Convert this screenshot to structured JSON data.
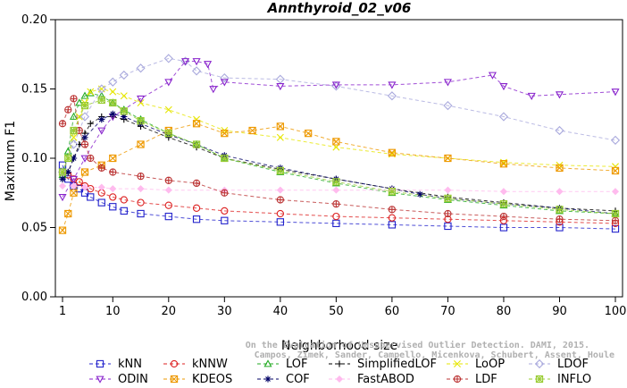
{
  "chart_data": {
    "type": "line",
    "title": "Annthyroid_02_v06",
    "xlabel": "Neighborhood size",
    "ylabel": "Maximum F1",
    "xlim": [
      1,
      100
    ],
    "ylim": [
      0,
      0.2
    ],
    "xticks": [
      "1",
      "10",
      "20",
      "30",
      "40",
      "50",
      "60",
      "70",
      "80",
      "90",
      "100"
    ],
    "yticks": [
      "0.00",
      "0.05",
      "0.10",
      "0.15",
      "0.20"
    ],
    "grid": false,
    "legend_position": "bottom",
    "credit_lines": [
      "Campos, Zimek, Sander, Campello, Micenkova, Schubert, Assent, Houle",
      "On the Evaluation of Unsupervised Outlier Detection. DAMI, 2015."
    ],
    "series": [
      {
        "name": "kNN",
        "color": "#2222cc",
        "marker": "square",
        "points": [
          [
            1,
            0.095
          ],
          [
            2,
            0.085
          ],
          [
            3,
            0.08
          ],
          [
            4,
            0.078
          ],
          [
            5,
            0.075
          ],
          [
            6,
            0.072
          ],
          [
            8,
            0.068
          ],
          [
            10,
            0.065
          ],
          [
            12,
            0.062
          ],
          [
            15,
            0.06
          ],
          [
            20,
            0.058
          ],
          [
            25,
            0.056
          ],
          [
            30,
            0.055
          ],
          [
            40,
            0.054
          ],
          [
            50,
            0.053
          ],
          [
            60,
            0.052
          ],
          [
            70,
            0.051
          ],
          [
            80,
            0.05
          ],
          [
            90,
            0.05
          ],
          [
            100,
            0.049
          ]
        ]
      },
      {
        "name": "kNNW",
        "color": "#dd2222",
        "marker": "circle",
        "points": [
          [
            1,
            0.09
          ],
          [
            2,
            0.088
          ],
          [
            3,
            0.085
          ],
          [
            4,
            0.083
          ],
          [
            5,
            0.08
          ],
          [
            6,
            0.078
          ],
          [
            8,
            0.075
          ],
          [
            10,
            0.072
          ],
          [
            12,
            0.07
          ],
          [
            15,
            0.068
          ],
          [
            20,
            0.066
          ],
          [
            25,
            0.064
          ],
          [
            30,
            0.062
          ],
          [
            40,
            0.06
          ],
          [
            50,
            0.058
          ],
          [
            60,
            0.057
          ],
          [
            70,
            0.056
          ],
          [
            80,
            0.055
          ],
          [
            90,
            0.054
          ],
          [
            100,
            0.053
          ]
        ]
      },
      {
        "name": "LOF",
        "color": "#22aa22",
        "marker": "triangle",
        "points": [
          [
            1,
            0.088
          ],
          [
            2,
            0.105
          ],
          [
            3,
            0.13
          ],
          [
            4,
            0.14
          ],
          [
            5,
            0.145
          ],
          [
            6,
            0.147
          ],
          [
            8,
            0.145
          ],
          [
            10,
            0.14
          ],
          [
            12,
            0.135
          ],
          [
            15,
            0.128
          ],
          [
            20,
            0.118
          ],
          [
            25,
            0.11
          ],
          [
            30,
            0.1
          ],
          [
            40,
            0.09
          ],
          [
            50,
            0.082
          ],
          [
            60,
            0.075
          ],
          [
            70,
            0.07
          ],
          [
            80,
            0.066
          ],
          [
            90,
            0.062
          ],
          [
            100,
            0.06
          ]
        ]
      },
      {
        "name": "SimplifiedLOF",
        "color": "#000000",
        "marker": "plus",
        "points": [
          [
            1,
            0.085
          ],
          [
            2,
            0.09
          ],
          [
            3,
            0.1
          ],
          [
            4,
            0.11
          ],
          [
            5,
            0.118
          ],
          [
            6,
            0.125
          ],
          [
            8,
            0.13
          ],
          [
            10,
            0.13
          ],
          [
            12,
            0.128
          ],
          [
            15,
            0.123
          ],
          [
            20,
            0.115
          ],
          [
            25,
            0.108
          ],
          [
            30,
            0.1
          ],
          [
            40,
            0.092
          ],
          [
            50,
            0.085
          ],
          [
            60,
            0.078
          ],
          [
            70,
            0.072
          ],
          [
            80,
            0.068
          ],
          [
            90,
            0.064
          ],
          [
            100,
            0.062
          ]
        ]
      },
      {
        "name": "LoOP",
        "color": "#e6e600",
        "marker": "cross",
        "points": [
          [
            1,
            0.09
          ],
          [
            2,
            0.1
          ],
          [
            3,
            0.115
          ],
          [
            4,
            0.13
          ],
          [
            5,
            0.14
          ],
          [
            6,
            0.148
          ],
          [
            8,
            0.15
          ],
          [
            10,
            0.148
          ],
          [
            12,
            0.145
          ],
          [
            15,
            0.14
          ],
          [
            20,
            0.135
          ],
          [
            25,
            0.128
          ],
          [
            30,
            0.12
          ],
          [
            40,
            0.115
          ],
          [
            50,
            0.108
          ],
          [
            60,
            0.103
          ],
          [
            70,
            0.1
          ],
          [
            80,
            0.097
          ],
          [
            90,
            0.095
          ],
          [
            100,
            0.094
          ]
        ]
      },
      {
        "name": "LDOF",
        "color": "#aaaadd",
        "marker": "diamond",
        "points": [
          [
            1,
            0.09
          ],
          [
            3,
            0.11
          ],
          [
            5,
            0.13
          ],
          [
            8,
            0.15
          ],
          [
            10,
            0.155
          ],
          [
            12,
            0.16
          ],
          [
            15,
            0.165
          ],
          [
            20,
            0.172
          ],
          [
            23,
            0.17
          ],
          [
            25,
            0.163
          ],
          [
            30,
            0.158
          ],
          [
            40,
            0.157
          ],
          [
            50,
            0.152
          ],
          [
            60,
            0.145
          ],
          [
            70,
            0.138
          ],
          [
            80,
            0.13
          ],
          [
            90,
            0.12
          ],
          [
            100,
            0.113
          ]
        ]
      },
      {
        "name": "ODIN",
        "color": "#8822cc",
        "marker": "triangle-down",
        "points": [
          [
            1,
            0.072
          ],
          [
            3,
            0.085
          ],
          [
            5,
            0.1
          ],
          [
            8,
            0.12
          ],
          [
            10,
            0.13
          ],
          [
            15,
            0.143
          ],
          [
            20,
            0.155
          ],
          [
            23,
            0.17
          ],
          [
            25,
            0.17
          ],
          [
            27,
            0.168
          ],
          [
            28,
            0.15
          ],
          [
            30,
            0.155
          ],
          [
            40,
            0.152
          ],
          [
            50,
            0.153
          ],
          [
            60,
            0.153
          ],
          [
            70,
            0.155
          ],
          [
            78,
            0.16
          ],
          [
            80,
            0.152
          ],
          [
            85,
            0.145
          ],
          [
            90,
            0.146
          ],
          [
            100,
            0.148
          ]
        ]
      },
      {
        "name": "KDEOS",
        "color": "#ee9900",
        "marker": "square-x",
        "points": [
          [
            1,
            0.048
          ],
          [
            2,
            0.06
          ],
          [
            3,
            0.075
          ],
          [
            5,
            0.09
          ],
          [
            8,
            0.095
          ],
          [
            10,
            0.1
          ],
          [
            15,
            0.11
          ],
          [
            20,
            0.12
          ],
          [
            25,
            0.125
          ],
          [
            30,
            0.118
          ],
          [
            35,
            0.12
          ],
          [
            40,
            0.123
          ],
          [
            45,
            0.118
          ],
          [
            50,
            0.112
          ],
          [
            60,
            0.104
          ],
          [
            70,
            0.1
          ],
          [
            80,
            0.096
          ],
          [
            90,
            0.093
          ],
          [
            100,
            0.091
          ]
        ]
      },
      {
        "name": "COF",
        "color": "#000066",
        "marker": "star",
        "points": [
          [
            1,
            0.085
          ],
          [
            2,
            0.09
          ],
          [
            3,
            0.1
          ],
          [
            5,
            0.115
          ],
          [
            8,
            0.128
          ],
          [
            10,
            0.132
          ],
          [
            12,
            0.13
          ],
          [
            15,
            0.125
          ],
          [
            20,
            0.117
          ],
          [
            25,
            0.11
          ],
          [
            30,
            0.102
          ],
          [
            40,
            0.093
          ],
          [
            50,
            0.085
          ],
          [
            60,
            0.078
          ],
          [
            65,
            0.074
          ],
          [
            70,
            0.071
          ],
          [
            80,
            0.067
          ],
          [
            90,
            0.064
          ],
          [
            100,
            0.06
          ]
        ]
      },
      {
        "name": "FastABOD",
        "color": "#ffbbee",
        "marker": "diamond-small",
        "points": [
          [
            1,
            0.08
          ],
          [
            3,
            0.08
          ],
          [
            5,
            0.079
          ],
          [
            8,
            0.079
          ],
          [
            10,
            0.078
          ],
          [
            15,
            0.078
          ],
          [
            20,
            0.077
          ],
          [
            30,
            0.077
          ],
          [
            40,
            0.077
          ],
          [
            50,
            0.077
          ],
          [
            60,
            0.077
          ],
          [
            70,
            0.077
          ],
          [
            80,
            0.076
          ],
          [
            90,
            0.076
          ],
          [
            100,
            0.076
          ]
        ]
      },
      {
        "name": "LDF",
        "color": "#bb3333",
        "marker": "circle-plus",
        "points": [
          [
            1,
            0.125
          ],
          [
            2,
            0.135
          ],
          [
            3,
            0.143
          ],
          [
            4,
            0.12
          ],
          [
            5,
            0.11
          ],
          [
            6,
            0.1
          ],
          [
            8,
            0.093
          ],
          [
            10,
            0.09
          ],
          [
            15,
            0.087
          ],
          [
            20,
            0.084
          ],
          [
            25,
            0.082
          ],
          [
            30,
            0.075
          ],
          [
            40,
            0.07
          ],
          [
            50,
            0.067
          ],
          [
            60,
            0.063
          ],
          [
            70,
            0.06
          ],
          [
            80,
            0.058
          ],
          [
            90,
            0.056
          ],
          [
            100,
            0.055
          ]
        ]
      },
      {
        "name": "INFLO",
        "color": "#99cc33",
        "marker": "square-star",
        "points": [
          [
            1,
            0.09
          ],
          [
            2,
            0.1
          ],
          [
            3,
            0.12
          ],
          [
            5,
            0.138
          ],
          [
            8,
            0.142
          ],
          [
            10,
            0.14
          ],
          [
            12,
            0.134
          ],
          [
            15,
            0.127
          ],
          [
            20,
            0.118
          ],
          [
            25,
            0.11
          ],
          [
            30,
            0.1
          ],
          [
            40,
            0.091
          ],
          [
            50,
            0.083
          ],
          [
            60,
            0.076
          ],
          [
            70,
            0.071
          ],
          [
            80,
            0.067
          ],
          [
            90,
            0.063
          ],
          [
            100,
            0.06
          ]
        ]
      }
    ]
  }
}
